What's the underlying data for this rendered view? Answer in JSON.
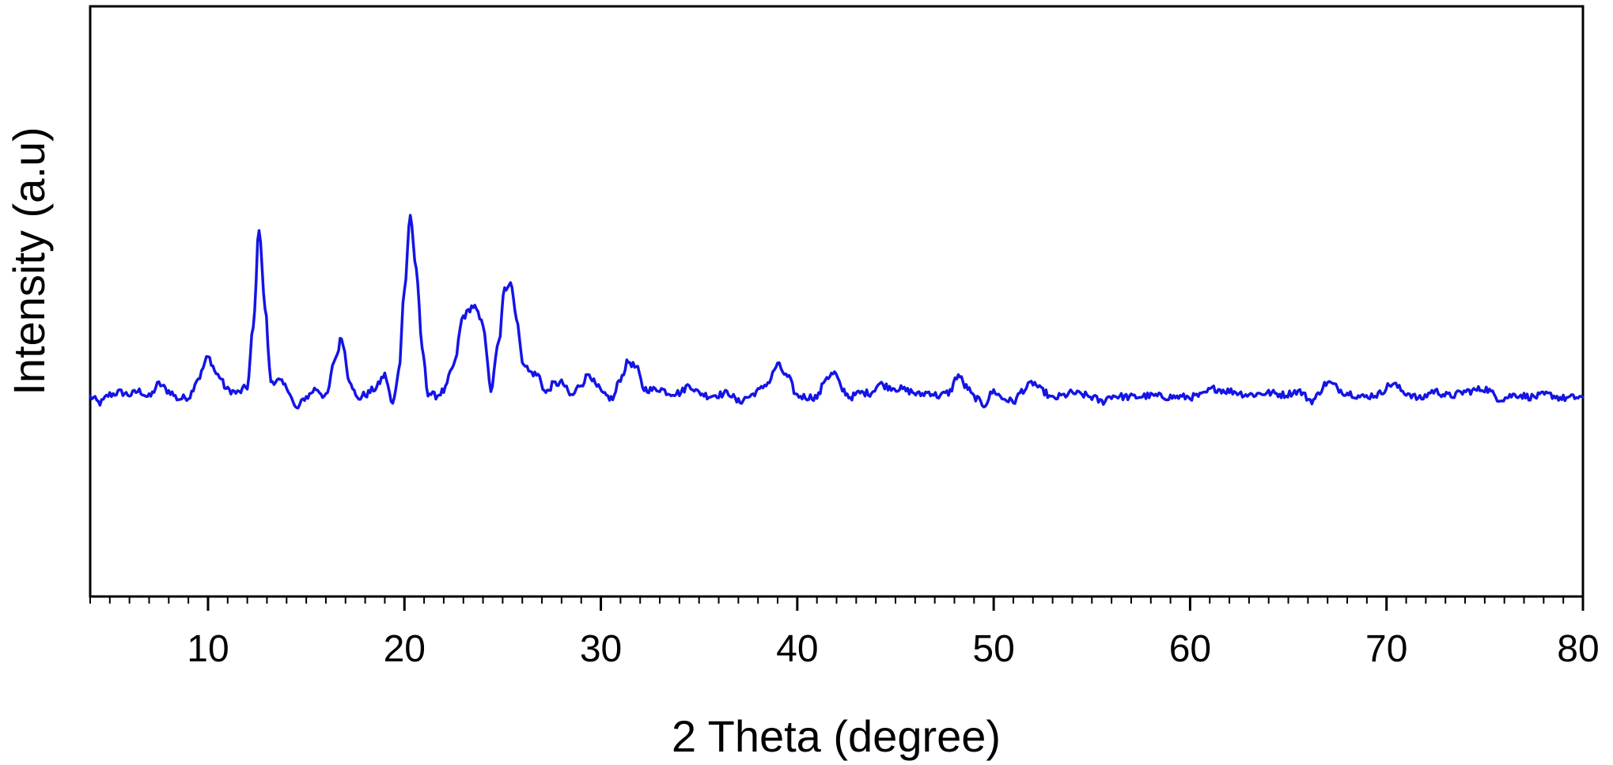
{
  "chart_data": {
    "type": "line",
    "title": "",
    "xlabel": "2 Theta (degree)",
    "ylabel": "Intensity (a.u)",
    "xlim": [
      4,
      80
    ],
    "ylim": [
      0,
      1
    ],
    "y_tick_labels_shown": false,
    "grid": false,
    "legend": "none",
    "x_ticks": [
      10,
      20,
      30,
      40,
      50,
      60,
      70,
      80
    ],
    "x_tick_labels": [
      "10",
      "20",
      "30",
      "40",
      "50",
      "60",
      "70",
      "80"
    ],
    "series": [
      {
        "color": "#1414e6",
        "x": [
          4.0,
          4.5,
          5.0,
          5.5,
          6.0,
          6.5,
          7.0,
          7.5,
          8.0,
          8.5,
          9.0,
          9.5,
          10.0,
          10.5,
          11.0,
          11.5,
          12.0,
          12.3,
          12.6,
          12.9,
          13.2,
          13.6,
          14.0,
          14.5,
          15.0,
          15.5,
          16.0,
          16.5,
          16.8,
          17.2,
          17.6,
          18.0,
          18.5,
          19.0,
          19.4,
          19.7,
          20.0,
          20.3,
          20.6,
          20.9,
          21.2,
          21.6,
          22.0,
          22.5,
          23.0,
          23.5,
          24.0,
          24.4,
          24.8,
          25.1,
          25.4,
          25.7,
          26.0,
          26.4,
          26.8,
          27.2,
          27.6,
          28.0,
          28.5,
          29.0,
          29.4,
          29.8,
          30.2,
          30.6,
          31.0,
          31.4,
          31.8,
          32.2,
          32.6,
          33.0,
          33.5,
          34.0,
          34.5,
          35.0,
          35.5,
          36.0,
          36.5,
          37.0,
          37.5,
          38.0,
          38.5,
          39.0,
          39.5,
          40.0,
          40.5,
          41.0,
          41.5,
          41.9,
          42.3,
          42.7,
          43.2,
          43.7,
          44.2,
          44.7,
          45.2,
          45.7,
          46.2,
          46.7,
          47.2,
          47.7,
          48.2,
          48.6,
          49.0,
          49.5,
          50.0,
          50.5,
          51.0,
          51.5,
          52.0,
          52.5,
          53.0,
          53.5,
          54.0,
          54.5,
          55.0,
          55.5,
          56.0,
          57.0,
          58.0,
          59.0,
          60.0,
          60.5,
          61.2,
          62.0,
          63.0,
          64.0,
          64.8,
          65.5,
          66.2,
          67.0,
          68.0,
          68.8,
          69.5,
          70.3,
          71.0,
          71.7,
          72.4,
          73.2,
          74.2,
          75.0,
          75.8,
          76.6,
          77.4,
          78.2,
          79.0,
          80.0
        ],
        "y": [
          0.338,
          0.328,
          0.342,
          0.346,
          0.342,
          0.348,
          0.338,
          0.36,
          0.348,
          0.335,
          0.338,
          0.37,
          0.405,
          0.375,
          0.35,
          0.345,
          0.355,
          0.455,
          0.625,
          0.49,
          0.365,
          0.365,
          0.355,
          0.318,
          0.338,
          0.352,
          0.338,
          0.405,
          0.438,
          0.368,
          0.335,
          0.342,
          0.352,
          0.375,
          0.325,
          0.38,
          0.52,
          0.645,
          0.555,
          0.42,
          0.345,
          0.34,
          0.348,
          0.39,
          0.475,
          0.492,
          0.462,
          0.35,
          0.43,
          0.52,
          0.535,
          0.475,
          0.4,
          0.38,
          0.375,
          0.345,
          0.36,
          0.362,
          0.34,
          0.36,
          0.378,
          0.355,
          0.34,
          0.335,
          0.37,
          0.398,
          0.388,
          0.352,
          0.35,
          0.352,
          0.345,
          0.345,
          0.358,
          0.345,
          0.34,
          0.342,
          0.345,
          0.33,
          0.338,
          0.348,
          0.362,
          0.392,
          0.372,
          0.34,
          0.338,
          0.338,
          0.372,
          0.378,
          0.35,
          0.338,
          0.345,
          0.345,
          0.36,
          0.355,
          0.352,
          0.348,
          0.342,
          0.346,
          0.34,
          0.345,
          0.375,
          0.355,
          0.338,
          0.325,
          0.348,
          0.335,
          0.33,
          0.35,
          0.362,
          0.348,
          0.335,
          0.34,
          0.345,
          0.342,
          0.338,
          0.33,
          0.34,
          0.338,
          0.34,
          0.338,
          0.338,
          0.34,
          0.352,
          0.348,
          0.342,
          0.345,
          0.342,
          0.348,
          0.332,
          0.362,
          0.345,
          0.338,
          0.342,
          0.36,
          0.345,
          0.335,
          0.348,
          0.34,
          0.348,
          0.352,
          0.335,
          0.342,
          0.338,
          0.342,
          0.336,
          0.338
        ]
      }
    ]
  }
}
